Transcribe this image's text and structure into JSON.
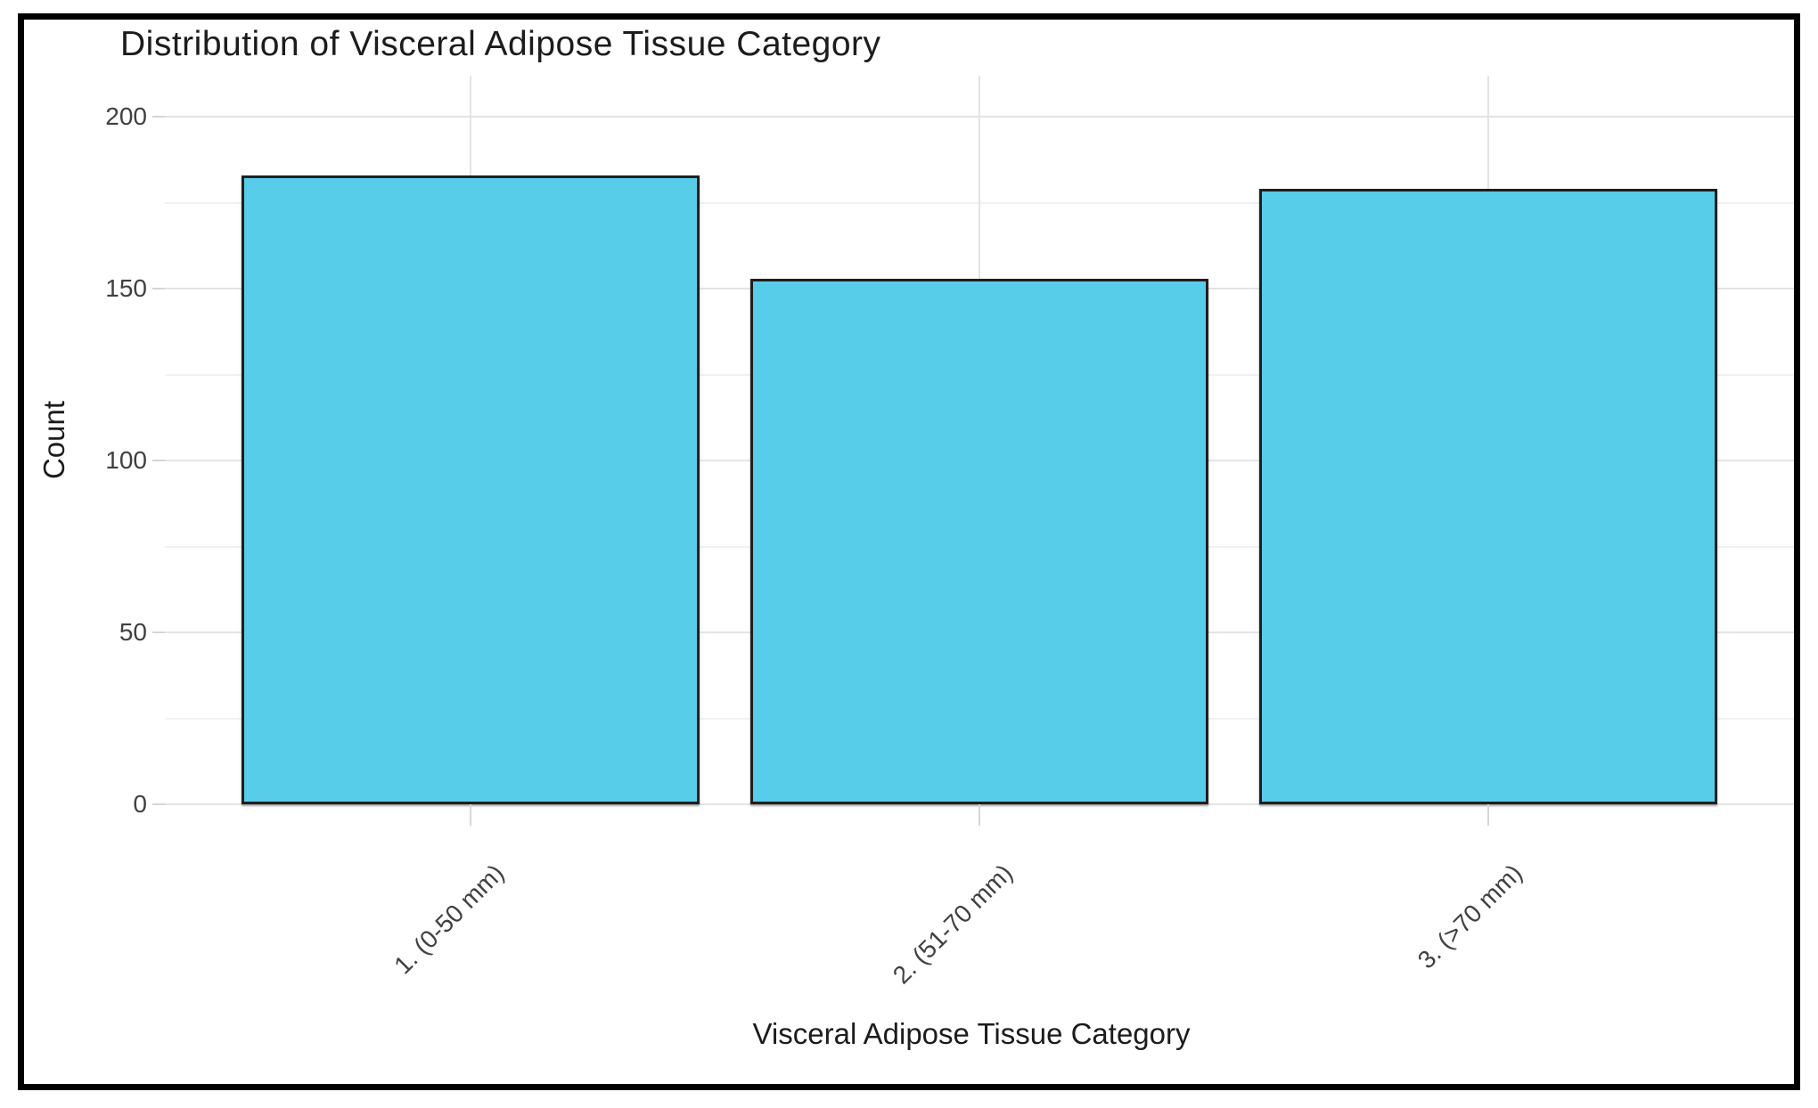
{
  "chart_data": {
    "type": "bar",
    "title": "Distribution of Visceral Adipose Tissue Category",
    "xlabel": "Visceral Adipose Tissue Category",
    "ylabel": "Count",
    "categories": [
      "1. (0-50 mm)",
      "2. (51-70 mm)",
      "3. (>70 mm)"
    ],
    "values": [
      183,
      153,
      179
    ],
    "ylim": [
      0,
      212
    ],
    "yticks": [
      0,
      50,
      100,
      150,
      200
    ],
    "yticks_minor": [
      25,
      75,
      125,
      175
    ],
    "bar_fill": "#57cdea",
    "bar_stroke": "#1f1f1f",
    "grid": "horizontal major+minor, vertical major at category centers",
    "legend": "none"
  },
  "style": {
    "grid_major": "#e4e4e4",
    "grid_minor": "#f1f1f1",
    "tick_color": "#d6d6d6",
    "text_color": "#404040",
    "title_color": "#1c1c1c",
    "frame_border": "#000000",
    "background": "#ffffff"
  }
}
